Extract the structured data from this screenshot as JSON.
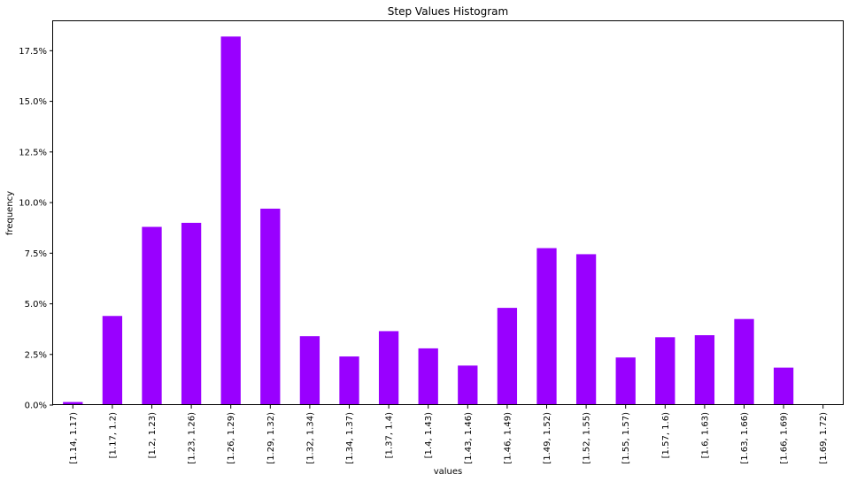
{
  "chart_data": {
    "type": "bar",
    "title": "Step Values Histogram",
    "xlabel": "values",
    "ylabel": "frequency",
    "ylim": [
      0,
      19.0
    ],
    "y_unit": "%",
    "yticks": [
      0,
      2.5,
      5.0,
      7.5,
      10.0,
      12.5,
      15.0,
      17.5
    ],
    "ytick_labels": [
      "0.0%",
      "2.5%",
      "5.0%",
      "7.5%",
      "10.0%",
      "12.5%",
      "15.0%",
      "17.5%"
    ],
    "bar_color": "#9900ff",
    "grid": false,
    "legend": "none",
    "categories": [
      "[1.14, 1.17)",
      "[1.17, 1.2)",
      "[1.2, 1.23)",
      "[1.23, 1.26)",
      "[1.26, 1.29)",
      "[1.29, 1.32)",
      "[1.32, 1.34)",
      "[1.34, 1.37)",
      "[1.37, 1.4)",
      "[1.4, 1.43)",
      "[1.43, 1.46)",
      "[1.46, 1.49)",
      "[1.49, 1.52)",
      "[1.52, 1.55)",
      "[1.55, 1.57)",
      "[1.57, 1.6)",
      "[1.6, 1.63)",
      "[1.63, 1.66)",
      "[1.66, 1.69)",
      "[1.69, 1.72)"
    ],
    "values": [
      0.15,
      4.4,
      8.8,
      9.0,
      18.2,
      9.7,
      3.4,
      2.4,
      3.65,
      2.8,
      1.95,
      4.8,
      7.75,
      7.45,
      2.35,
      3.35,
      3.45,
      4.25,
      1.85,
      0.0
    ]
  }
}
